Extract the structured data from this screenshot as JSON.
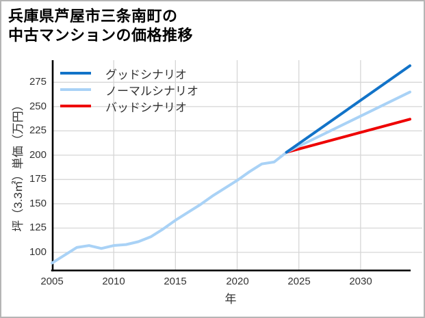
{
  "title": {
    "line1": "兵庫県芦屋市三条南町の",
    "line2": "中古マンションの価格推移"
  },
  "chart_data": {
    "type": "line",
    "title": "兵庫県芦屋市三条南町の中古マンションの価格推移",
    "xlabel": "年",
    "ylabel": "坪（3.3㎡）単価（万円）",
    "xlim": [
      2005,
      2034
    ],
    "ylim": [
      81,
      298
    ],
    "x_ticks": [
      2005,
      2010,
      2015,
      2020,
      2025,
      2030
    ],
    "y_ticks": [
      275,
      250,
      225,
      200,
      175,
      150,
      125,
      100
    ],
    "grid": true,
    "legend_position": "top-left",
    "history": {
      "color": "#a9d2f6",
      "x": [
        2005,
        2006,
        2007,
        2008,
        2009,
        2010,
        2011,
        2012,
        2013,
        2014,
        2015,
        2016,
        2017,
        2018,
        2019,
        2020,
        2021,
        2022,
        2023,
        2024
      ],
      "y": [
        89,
        97,
        105,
        107,
        104,
        107,
        108,
        111,
        116,
        124,
        133,
        141,
        149,
        158,
        166,
        174,
        183,
        191,
        193,
        203
      ]
    },
    "series": [
      {
        "name": "グッドシナリオ",
        "color": "#1273c8",
        "x": [
          2024,
          2034
        ],
        "y": [
          203,
          292
        ]
      },
      {
        "name": "ノーマルシナリオ",
        "color": "#a9d2f6",
        "x": [
          2024,
          2034
        ],
        "y": [
          203,
          265
        ]
      },
      {
        "name": "バッドシナリオ",
        "color": "#ee0000",
        "x": [
          2024,
          2034
        ],
        "y": [
          203,
          237
        ]
      }
    ]
  }
}
